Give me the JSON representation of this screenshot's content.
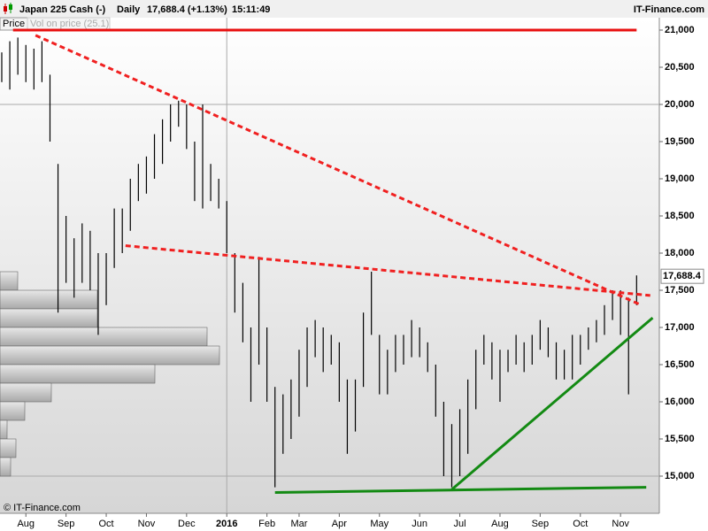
{
  "header": {
    "instrument": "Japan 225 Cash (-)",
    "period": "Daily",
    "quote": "17,688.4 (+1.13%)",
    "time": "15:11:49",
    "brand": "IT-Finance.com",
    "tab_price": "Price",
    "tab_volume": "Vol on price (25.1)",
    "copyright": "© IT-Finance.com"
  },
  "chart_data": {
    "type": "ohlc",
    "categories": [
      null,
      null,
      null,
      "Aug",
      null,
      null,
      null,
      null,
      "Sep",
      null,
      null,
      null,
      null,
      "Oct",
      null,
      null,
      null,
      null,
      "Nov",
      null,
      null,
      null,
      null,
      "Dec",
      null,
      null,
      null,
      null,
      "2016",
      null,
      null,
      null,
      null,
      "Feb",
      null,
      null,
      null,
      "Mar",
      null,
      null,
      null,
      null,
      "Apr",
      null,
      null,
      null,
      null,
      "May",
      null,
      null,
      null,
      null,
      "Jun",
      null,
      null,
      null,
      null,
      "Jul",
      null,
      null,
      null,
      null,
      "Aug",
      null,
      null,
      null,
      null,
      "Sep",
      null,
      null,
      null,
      null,
      "Oct",
      null,
      null,
      null,
      null,
      "Nov",
      null,
      null
    ],
    "series": [
      {
        "name": "high",
        "color": "#000000",
        "values": [
          20700,
          20850,
          20900,
          20800,
          20750,
          20850,
          20400,
          19200,
          18500,
          18200,
          18400,
          18300,
          18000,
          18000,
          18600,
          18600,
          19000,
          19200,
          19300,
          19600,
          19800,
          20000,
          20050,
          20000,
          19500,
          20000,
          19200,
          19000,
          18700,
          18000,
          17600,
          17000,
          17950,
          17000,
          16200,
          16100,
          16300,
          16700,
          17000,
          17100,
          17000,
          16900,
          16800,
          16300,
          16300,
          17200,
          17750,
          16900,
          16700,
          16900,
          16900,
          17100,
          17000,
          16800,
          16500,
          16000,
          15700,
          15900,
          16300,
          16700,
          16900,
          16800,
          16700,
          16700,
          16900,
          16800,
          16900,
          17100,
          17000,
          16800,
          16700,
          16900,
          16900,
          17000,
          17100,
          17300,
          17500,
          17500,
          17400,
          17700
        ]
      },
      {
        "name": "low",
        "color": "#000000",
        "values": [
          20300,
          20200,
          20400,
          20300,
          20200,
          20300,
          19500,
          17200,
          17600,
          17400,
          17600,
          17500,
          16900,
          17300,
          17800,
          18000,
          18300,
          18700,
          18800,
          19000,
          19200,
          19500,
          19700,
          19400,
          18700,
          18600,
          18700,
          18600,
          18000,
          17200,
          16800,
          16000,
          16500,
          16000,
          14850,
          15300,
          15500,
          15800,
          16200,
          16600,
          16400,
          16500,
          16000,
          15300,
          15600,
          16200,
          16900,
          16100,
          16100,
          16400,
          16500,
          16600,
          16600,
          16400,
          15800,
          15000,
          14850,
          15000,
          15300,
          15900,
          16500,
          16300,
          16000,
          16400,
          16500,
          16400,
          16500,
          16700,
          16600,
          16300,
          16300,
          16300,
          16500,
          16700,
          16800,
          16900,
          17100,
          16900,
          16100,
          17300
        ]
      }
    ],
    "last_price": 17688.4,
    "last_price_label": "17,688.4",
    "ylim": [
      14500,
      21190
    ],
    "yticks": [
      {
        "value": 15000,
        "label": "15,000"
      },
      {
        "value": 15500,
        "label": "15,500"
      },
      {
        "value": 16000,
        "label": "16,000"
      },
      {
        "value": 16500,
        "label": "16,500"
      },
      {
        "value": 17000,
        "label": "17,000"
      },
      {
        "value": 17500,
        "label": "17,500"
      },
      {
        "value": 18000,
        "label": "18,000"
      },
      {
        "value": 18500,
        "label": "18,500"
      },
      {
        "value": 19000,
        "label": "19,000"
      },
      {
        "value": 19500,
        "label": "19,500"
      },
      {
        "value": 20000,
        "label": "20,000"
      },
      {
        "value": 20500,
        "label": "20,500"
      },
      {
        "value": 21000,
        "label": "21,000"
      }
    ],
    "ygrid": [
      20000,
      15000
    ],
    "xgrid": [
      28
    ],
    "trendlines": [
      {
        "color": "#e81010",
        "dashed": false,
        "from": [
          1.4,
          21000
        ],
        "to": [
          79,
          21000
        ]
      },
      {
        "color": "#f02020",
        "dashed": true,
        "from": [
          4.2,
          20930
        ],
        "to": [
          79.6,
          17300
        ]
      },
      {
        "color": "#f02020",
        "dashed": true,
        "from": [
          15.4,
          18100
        ],
        "to": [
          80.7,
          17430
        ]
      },
      {
        "color": "#138a13",
        "dashed": false,
        "from": [
          34,
          14780
        ],
        "to": [
          80.2,
          14850
        ]
      },
      {
        "color": "#138a13",
        "dashed": false,
        "from": [
          56,
          14820
        ],
        "to": [
          81,
          17130
        ]
      }
    ],
    "volume_profile": {
      "color": "#b8b8b8",
      "bins": [
        17750,
        17500,
        17250,
        17000,
        16750,
        16500,
        16250,
        16000,
        15750,
        15500,
        15250,
        15000
      ],
      "values": [
        20,
        110,
        110,
        234,
        248,
        175,
        58,
        28,
        8,
        18,
        12
      ]
    }
  }
}
